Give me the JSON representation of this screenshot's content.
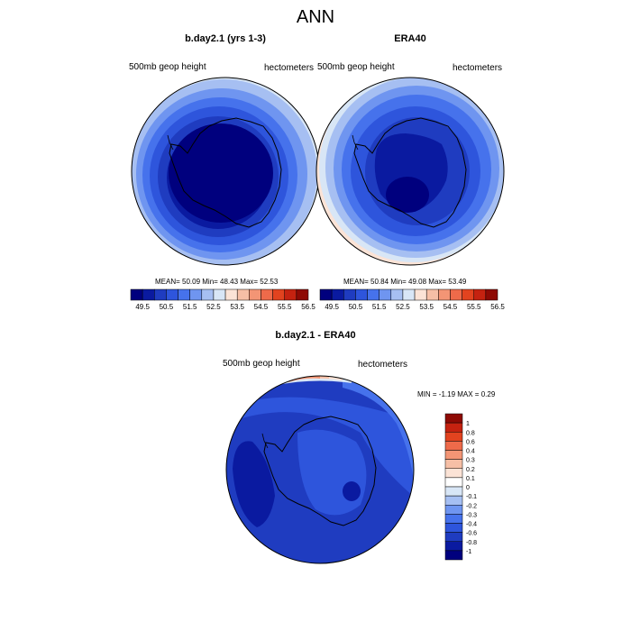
{
  "figure": {
    "title": "ANN",
    "panels": [
      {
        "title": "b.day2.1 (yrs 1-3)",
        "left_label": "500mb geop height",
        "right_label": "hectometers",
        "stats": "MEAN=  50.09  Min=  48.43  Max=  52.53"
      },
      {
        "title": "ERA40",
        "left_label": "500mb geop height",
        "right_label": "hectometers",
        "stats": "MEAN=  50.84  Min=  49.08  Max=  53.49"
      },
      {
        "title": "b.day2.1 - ERA40",
        "left_label": "500mb geop height",
        "right_label": "hectometers",
        "stats": "MIN =  -1.19 MAX =   0.29"
      }
    ],
    "colorbar_top": {
      "labels": [
        "49.5",
        "50.5",
        "51.5",
        "52.5",
        "53.5",
        "54.5",
        "55.5",
        "56.5"
      ],
      "colors": [
        "#00007e",
        "#0a1aa0",
        "#1f3cc0",
        "#2e55dc",
        "#4672ec",
        "#6f95f0",
        "#a6bff2",
        "#d8e6f6",
        "#fbe3d6",
        "#f6bfa6",
        "#f39575",
        "#ee6a4a",
        "#e2431f",
        "#c52210",
        "#8e0a04"
      ]
    },
    "colorbar_diff": {
      "labels": [
        "1",
        "0.8",
        "0.6",
        "0.4",
        "0.3",
        "0.2",
        "0.1",
        "0",
        "-0.1",
        "-0.2",
        "-0.3",
        "-0.4",
        "-0.6",
        "-0.8",
        "-1"
      ],
      "colors": [
        "#8e0a04",
        "#c52210",
        "#e2431f",
        "#ee6a4a",
        "#f39575",
        "#f6bfa6",
        "#fbe3d6",
        "#ffffff",
        "#d8e6f6",
        "#a6bff2",
        "#6f95f0",
        "#4672ec",
        "#2e55dc",
        "#1f3cc0",
        "#0a1aa0",
        "#00007e"
      ]
    }
  },
  "chart_data": [
    {
      "type": "heatmap",
      "title": "b.day2.1 (yrs 1-3)",
      "variable": "500mb geop height",
      "units": "hectometers",
      "mean": 50.09,
      "min": 48.43,
      "max": 52.53
    },
    {
      "type": "heatmap",
      "title": "ERA40",
      "variable": "500mb geop height",
      "units": "hectometers",
      "mean": 50.84,
      "min": 49.08,
      "max": 53.49
    },
    {
      "type": "heatmap",
      "title": "b.day2.1 - ERA40",
      "variable": "500mb geop height",
      "units": "hectometers",
      "min": -1.19,
      "max": 0.29
    }
  ]
}
